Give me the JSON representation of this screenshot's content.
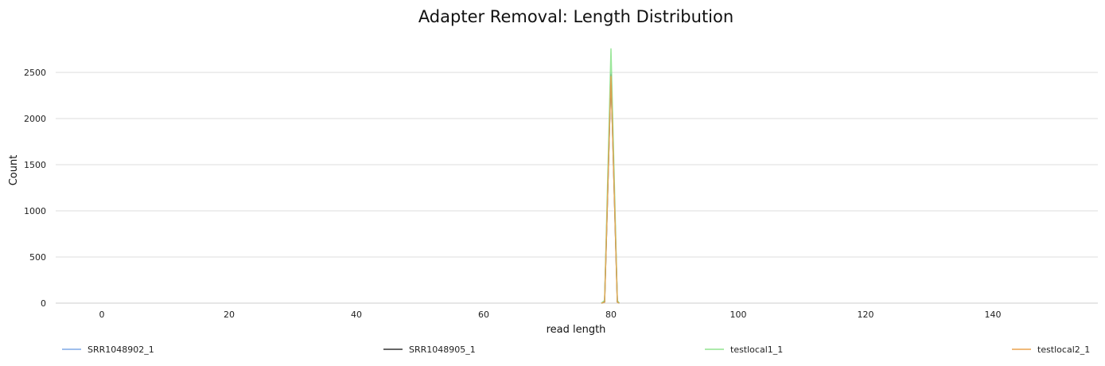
{
  "chart_data": {
    "type": "line",
    "title": "Adapter Removal: Length Distribution",
    "xlabel": "read length",
    "ylabel": "Count",
    "xlim": [
      -7,
      156
    ],
    "ylim": [
      0,
      2600
    ],
    "xticks": [
      0,
      20,
      40,
      60,
      80,
      100,
      120,
      140
    ],
    "yticks": [
      0,
      500,
      1000,
      1500,
      2000,
      2500
    ],
    "grid": "horizontal",
    "legend_position": "bottom",
    "series": [
      {
        "name": "SRR1048902_1",
        "color": "#7fa9e6",
        "x": [
          78.5,
          79,
          80,
          81,
          81.3
        ],
        "y": [
          0,
          20,
          2500,
          20,
          0
        ]
      },
      {
        "name": "SRR1048905_1",
        "color": "#333333",
        "x": [
          78.5,
          79,
          80,
          81,
          81.3
        ],
        "y": [
          0,
          15,
          2480,
          15,
          0
        ]
      },
      {
        "name": "testlocal1_1",
        "color": "#90e38f",
        "x": [
          78.5,
          79,
          80,
          81,
          81.3
        ],
        "y": [
          0,
          30,
          2760,
          30,
          0
        ]
      },
      {
        "name": "testlocal2_1",
        "color": "#eba44f",
        "x": [
          78.5,
          79,
          80,
          81,
          81.3
        ],
        "y": [
          0,
          10,
          2460,
          10,
          0
        ]
      }
    ]
  }
}
